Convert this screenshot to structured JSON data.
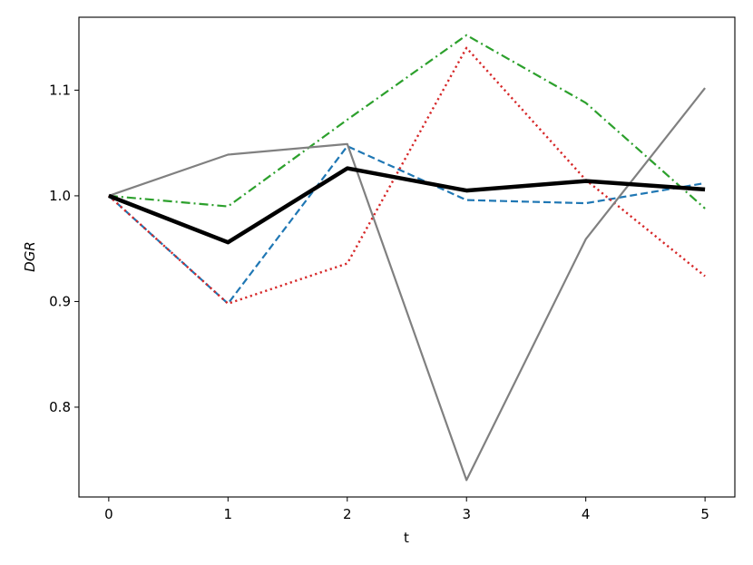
{
  "chart_data": {
    "type": "line",
    "title": "",
    "xlabel": "t",
    "ylabel": "DGR",
    "x": [
      0,
      1,
      2,
      3,
      4,
      5
    ],
    "xlim": [
      -0.25,
      5.25
    ],
    "ylim": [
      0.715,
      1.169
    ],
    "xticks": [
      "0",
      "1",
      "2",
      "3",
      "4",
      "5"
    ],
    "yticks": [
      {
        "value": 0.8,
        "label": "0.8"
      },
      {
        "value": 0.9,
        "label": "0.9"
      },
      {
        "value": 1.0,
        "label": "1.0"
      },
      {
        "value": 1.1,
        "label": "1.1"
      }
    ],
    "grid": false,
    "legend": "none",
    "series": [
      {
        "values": [
          1.0,
          0.898,
          1.047,
          0.996,
          0.993,
          1.012
        ],
        "color": "#1f77b4",
        "style": "dashed"
      },
      {
        "values": [
          1.0,
          0.99,
          1.072,
          1.152,
          1.088,
          0.988
        ],
        "color": "#2ca02c",
        "style": "dashdot"
      },
      {
        "values": [
          1.0,
          0.898,
          0.936,
          1.14,
          1.015,
          0.924
        ],
        "color": "#d62728",
        "style": "dotted"
      },
      {
        "values": [
          1.0,
          1.039,
          1.049,
          0.731,
          0.959,
          1.102
        ],
        "color": "#808080",
        "style": "solid"
      },
      {
        "values": [
          1.0,
          0.956,
          1.026,
          1.005,
          1.014,
          1.006
        ],
        "color": "#000000",
        "style": "solid-thick"
      }
    ]
  }
}
